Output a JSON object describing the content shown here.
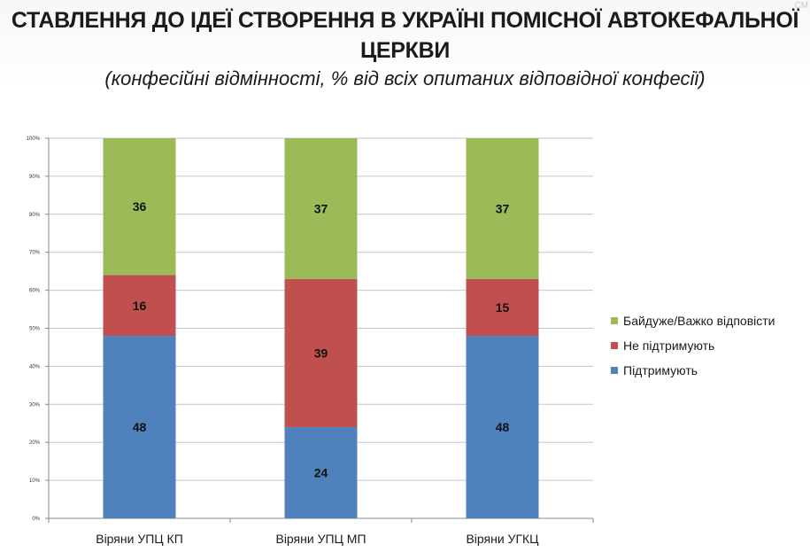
{
  "header": {
    "title_line1": "СТАВЛЕННЯ ДО ІДЕЇ СТВОРЕННЯ В УКРАЇНІ ПОМІСНОЇ АВТОКЕФАЛЬНОЇ",
    "title_line2": "ЦЕРКВИ",
    "subtitle": "(конфесійні відмінності, % від всіх опитаних відповідної конфесії)",
    "corner_mark": "СМ"
  },
  "chart_data": {
    "type": "bar",
    "stacked": true,
    "categories": [
      "Віряни УПЦ КП",
      "Віряни УПЦ МП",
      "Віряни УГКЦ"
    ],
    "series": [
      {
        "name": "Підтримують",
        "values": [
          48,
          24,
          48
        ],
        "color": "#4f81bd"
      },
      {
        "name": "Не підтримують",
        "values": [
          16,
          39,
          15
        ],
        "color": "#c0504d"
      },
      {
        "name": "Байдуже/Важко відповісти",
        "values": [
          36,
          37,
          37
        ],
        "color": "#9bbb59"
      }
    ],
    "ylim": [
      0,
      100
    ],
    "yticks": [
      "0%",
      "10%",
      "20%",
      "30%",
      "40%",
      "50%",
      "60%",
      "70%",
      "80%",
      "90%",
      "100%"
    ],
    "grid": true,
    "legend_position": "right",
    "legend_order": [
      "Байдуже/Важко відповісти",
      "Не підтримують",
      "Підтримують"
    ]
  }
}
